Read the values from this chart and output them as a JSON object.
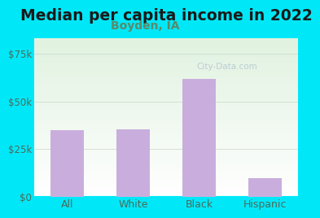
{
  "title": "Median per capita income in 2022",
  "subtitle": "Boyden, IA",
  "categories": [
    "All",
    "White",
    "Black",
    "Hispanic"
  ],
  "values": [
    35000,
    35500,
    62000,
    10000
  ],
  "bar_color": "#c9aedd",
  "title_fontsize": 13.5,
  "subtitle_fontsize": 10,
  "subtitle_color": "#5a8a6a",
  "title_color": "#1a1a1a",
  "yticks": [
    0,
    25000,
    50000,
    75000
  ],
  "ytick_labels": [
    "$0",
    "$25k",
    "$50k",
    "$75k"
  ],
  "ylim": [
    0,
    83000
  ],
  "bg_outer": "#00e8f8",
  "axis_color": "#4a6a5a",
  "tick_color": "#4a6a5a",
  "watermark": "City-Data.com",
  "watermark_color": "#aabbcc",
  "grid_color": "#ccddcc",
  "bar_width": 0.5
}
